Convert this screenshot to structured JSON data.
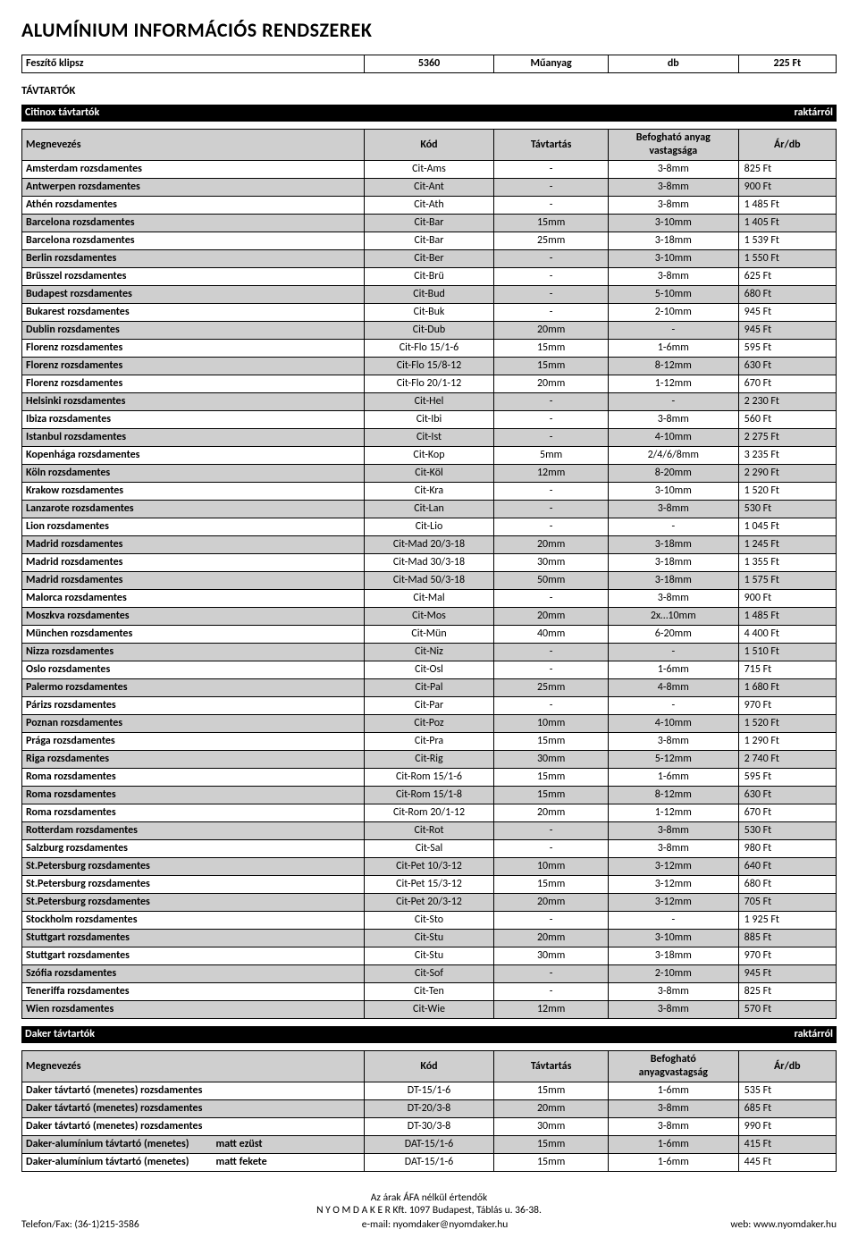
{
  "page_title": "ALUMÍNIUM INFORMÁCIÓS RENDSZEREK",
  "top_row": {
    "name": "Feszítő klipsz",
    "code": "5360",
    "material": "Műanyag",
    "unit": "db",
    "price": "225 Ft"
  },
  "section_tavtartok": "TÁVTARTÓK",
  "citinox": {
    "bar_left": "Citinox távtartók",
    "bar_right": "raktárról",
    "headers": {
      "name": "Megnevezés",
      "code": "Kód",
      "dist": "Távtartás",
      "thick_line1": "Befogható anyag",
      "thick_line2": "vastagsága",
      "price": "Ár/db"
    },
    "rows": [
      {
        "name": "Amsterdam rozsdamentes",
        "code": "Cit-Ams",
        "dist": "-",
        "thick": "3-8mm",
        "price": "825 Ft"
      },
      {
        "name": "Antwerpen rozsdamentes",
        "code": "Cit-Ant",
        "dist": "-",
        "thick": "3-8mm",
        "price": "900 Ft"
      },
      {
        "name": "Athén rozsdamentes",
        "code": "Cit-Ath",
        "dist": "-",
        "thick": "3-8mm",
        "price": "1 485 Ft"
      },
      {
        "name": "Barcelona rozsdamentes",
        "code": "Cit-Bar",
        "dist": "15mm",
        "thick": "3-10mm",
        "price": "1 405 Ft"
      },
      {
        "name": "Barcelona rozsdamentes",
        "code": "Cit-Bar",
        "dist": "25mm",
        "thick": "3-18mm",
        "price": "1 539 Ft"
      },
      {
        "name": "Berlin rozsdamentes",
        "code": "Cit-Ber",
        "dist": "-",
        "thick": "3-10mm",
        "price": "1 550 Ft"
      },
      {
        "name": "Brüsszel rozsdamentes",
        "code": "Cit-Brü",
        "dist": "-",
        "thick": "3-8mm",
        "price": "625 Ft"
      },
      {
        "name": "Budapest rozsdamentes",
        "code": "Cit-Bud",
        "dist": "-",
        "thick": "5-10mm",
        "price": "680 Ft"
      },
      {
        "name": "Bukarest rozsdamentes",
        "code": "Cit-Buk",
        "dist": "-",
        "thick": "2-10mm",
        "price": "945 Ft"
      },
      {
        "name": "Dublin rozsdamentes",
        "code": "Cit-Dub",
        "dist": "20mm",
        "thick": "-",
        "price": "945 Ft"
      },
      {
        "name": "Florenz rozsdamentes",
        "code": "Cit-Flo 15/1-6",
        "dist": "15mm",
        "thick": "1-6mm",
        "price": "595 Ft"
      },
      {
        "name": "Florenz rozsdamentes",
        "code": "Cit-Flo 15/8-12",
        "dist": "15mm",
        "thick": "8-12mm",
        "price": "630 Ft"
      },
      {
        "name": "Florenz rozsdamentes",
        "code": "Cit-Flo 20/1-12",
        "dist": "20mm",
        "thick": "1-12mm",
        "price": "670 Ft"
      },
      {
        "name": "Helsinki rozsdamentes",
        "code": "Cit-Hel",
        "dist": "-",
        "thick": "-",
        "price": "2 230 Ft"
      },
      {
        "name": "Ibiza rozsdamentes",
        "code": "Cit-Ibi",
        "dist": "-",
        "thick": "3-8mm",
        "price": "560 Ft"
      },
      {
        "name": "Istanbul rozsdamentes",
        "code": "Cit-Ist",
        "dist": "-",
        "thick": "4-10mm",
        "price": "2 275 Ft"
      },
      {
        "name": "Kopenhága rozsdamentes",
        "code": "Cit-Kop",
        "dist": "5mm",
        "thick": "2/4/6/8mm",
        "price": "3 235 Ft"
      },
      {
        "name": "Köln rozsdamentes",
        "code": "Cit-Köl",
        "dist": "12mm",
        "thick": "8-20mm",
        "price": "2 290 Ft"
      },
      {
        "name": "Krakow rozsdamentes",
        "code": "Cit-Kra",
        "dist": "-",
        "thick": "3-10mm",
        "price": "1 520 Ft"
      },
      {
        "name": "Lanzarote rozsdamentes",
        "code": "Cit-Lan",
        "dist": "-",
        "thick": "3-8mm",
        "price": "530 Ft"
      },
      {
        "name": "Lion rozsdamentes",
        "code": "Cit-Lio",
        "dist": "-",
        "thick": "-",
        "price": "1 045 Ft"
      },
      {
        "name": "Madrid rozsdamentes",
        "code": "Cit-Mad 20/3-18",
        "dist": "20mm",
        "thick": "3-18mm",
        "price": "1 245 Ft"
      },
      {
        "name": "Madrid rozsdamentes",
        "code": "Cit-Mad 30/3-18",
        "dist": "30mm",
        "thick": "3-18mm",
        "price": "1 355 Ft"
      },
      {
        "name": "Madrid rozsdamentes",
        "code": "Cit-Mad 50/3-18",
        "dist": "50mm",
        "thick": "3-18mm",
        "price": "1 575 Ft"
      },
      {
        "name": "Malorca rozsdamentes",
        "code": "Cit-Mal",
        "dist": "-",
        "thick": "3-8mm",
        "price": "900 Ft"
      },
      {
        "name": "Moszkva rozsdamentes",
        "code": "Cit-Mos",
        "dist": "20mm",
        "thick": "2x…10mm",
        "price": "1 485 Ft"
      },
      {
        "name": "München rozsdamentes",
        "code": "Cit-Mün",
        "dist": "40mm",
        "thick": "6-20mm",
        "price": "4 400 Ft"
      },
      {
        "name": "Nizza rozsdamentes",
        "code": "Cit-Niz",
        "dist": "-",
        "thick": "-",
        "price": "1 510 Ft"
      },
      {
        "name": "Oslo rozsdamentes",
        "code": "Cit-Osl",
        "dist": "-",
        "thick": "1-6mm",
        "price": "715 Ft"
      },
      {
        "name": "Palermo rozsdamentes",
        "code": "Cit-Pal",
        "dist": "25mm",
        "thick": "4-8mm",
        "price": "1 680 Ft"
      },
      {
        "name": "Párizs rozsdamentes",
        "code": "Cit-Par",
        "dist": "-",
        "thick": "-",
        "price": "970 Ft"
      },
      {
        "name": "Poznan rozsdamentes",
        "code": "Cit-Poz",
        "dist": "10mm",
        "thick": "4-10mm",
        "price": "1 520 Ft"
      },
      {
        "name": "Prága rozsdamentes",
        "code": "Cit-Pra",
        "dist": "15mm",
        "thick": "3-8mm",
        "price": "1 290 Ft"
      },
      {
        "name": "Riga rozsdamentes",
        "code": "Cit-Rig",
        "dist": "30mm",
        "thick": "5-12mm",
        "price": "2 740 Ft"
      },
      {
        "name": "Roma rozsdamentes",
        "code": "Cit-Rom 15/1-6",
        "dist": "15mm",
        "thick": "1-6mm",
        "price": "595 Ft"
      },
      {
        "name": "Roma rozsdamentes",
        "code": "Cit-Rom 15/1-8",
        "dist": "15mm",
        "thick": "8-12mm",
        "price": "630 Ft"
      },
      {
        "name": "Roma rozsdamentes",
        "code": "Cit-Rom 20/1-12",
        "dist": "20mm",
        "thick": "1-12mm",
        "price": "670 Ft"
      },
      {
        "name": "Rotterdam rozsdamentes",
        "code": "Cit-Rot",
        "dist": "-",
        "thick": "3-8mm",
        "price": "530 Ft"
      },
      {
        "name": "Salzburg rozsdamentes",
        "code": "Cit-Sal",
        "dist": "-",
        "thick": "3-8mm",
        "price": "980 Ft"
      },
      {
        "name": "St.Petersburg rozsdamentes",
        "code": "Cit-Pet 10/3-12",
        "dist": "10mm",
        "thick": "3-12mm",
        "price": "640 Ft"
      },
      {
        "name": "St.Petersburg rozsdamentes",
        "code": "Cit-Pet 15/3-12",
        "dist": "15mm",
        "thick": "3-12mm",
        "price": "680 Ft"
      },
      {
        "name": "St.Petersburg rozsdamentes",
        "code": "Cit-Pet 20/3-12",
        "dist": "20mm",
        "thick": "3-12mm",
        "price": "705 Ft"
      },
      {
        "name": "Stockholm rozsdamentes",
        "code": "Cit-Sto",
        "dist": "-",
        "thick": "-",
        "price": "1 925 Ft"
      },
      {
        "name": "Stuttgart rozsdamentes",
        "code": "Cit-Stu",
        "dist": "20mm",
        "thick": "3-10mm",
        "price": "885 Ft"
      },
      {
        "name": "Stuttgart rozsdamentes",
        "code": "Cit-Stu",
        "dist": "30mm",
        "thick": "3-18mm",
        "price": "970 Ft"
      },
      {
        "name": "Szófia rozsdamentes",
        "code": "Cit-Sof",
        "dist": "-",
        "thick": "2-10mm",
        "price": "945 Ft"
      },
      {
        "name": "Teneriffa rozsdamentes",
        "code": "Cit-Ten",
        "dist": "-",
        "thick": "3-8mm",
        "price": "825 Ft"
      },
      {
        "name": "Wien rozsdamentes",
        "code": "Cit-Wie",
        "dist": "12mm",
        "thick": "3-8mm",
        "price": "570 Ft"
      }
    ]
  },
  "daker": {
    "bar_left": "Daker távtartók",
    "bar_right": "raktárról",
    "headers": {
      "name": "Megnevezés",
      "code": "Kód",
      "dist": "Távtartás",
      "thick_line1": "Befogható",
      "thick_line2": "anyagvastagság",
      "price": "Ár/db"
    },
    "rows": [
      {
        "name": "Daker távtartó (menetes) rozsdamentes",
        "variant": "",
        "code": "DT-15/1-6",
        "dist": "15mm",
        "thick": "1-6mm",
        "price": "535 Ft"
      },
      {
        "name": "Daker távtartó (menetes) rozsdamentes",
        "variant": "",
        "code": "DT-20/3-8",
        "dist": "20mm",
        "thick": "3-8mm",
        "price": "685 Ft"
      },
      {
        "name": "Daker távtartó (menetes) rozsdamentes",
        "variant": "",
        "code": "DT-30/3-8",
        "dist": "30mm",
        "thick": "3-8mm",
        "price": "990 Ft"
      },
      {
        "name": "Daker-alumínium távtartó (menetes)",
        "variant": "matt ezüst",
        "code": "DAT-15/1-6",
        "dist": "15mm",
        "thick": "1-6mm",
        "price": "415 Ft"
      },
      {
        "name": "Daker-alumínium távtartó (menetes)",
        "variant": "matt fekete",
        "code": "DAT-15/1-6",
        "dist": "15mm",
        "thick": "1-6mm",
        "price": "445 Ft"
      }
    ]
  },
  "footer": {
    "line1": "Az árak ÁFA nélkül értendők",
    "line2": "N Y O M D A K E R  Kft. 1097 Budapest, Táblás u. 36-38.",
    "phone": "Telefon/Fax: (36-1)215-3586",
    "email": "e-mail: nyomdaker@nyomdaker.hu",
    "web": "web: www.nyomdaker.hu"
  },
  "alt_row_indices_citinox": [
    1,
    3,
    5,
    7,
    9,
    11,
    13,
    15,
    17,
    19,
    21,
    23,
    25,
    27,
    29,
    31,
    33,
    35,
    37,
    39,
    41,
    43,
    45,
    47
  ],
  "alt_row_indices_daker": [
    1,
    3
  ],
  "colors": {
    "header_bg": "#cfcfcf",
    "section_bar_bg": "#000000",
    "section_bar_fg": "#ffffff",
    "border": "#000000"
  }
}
